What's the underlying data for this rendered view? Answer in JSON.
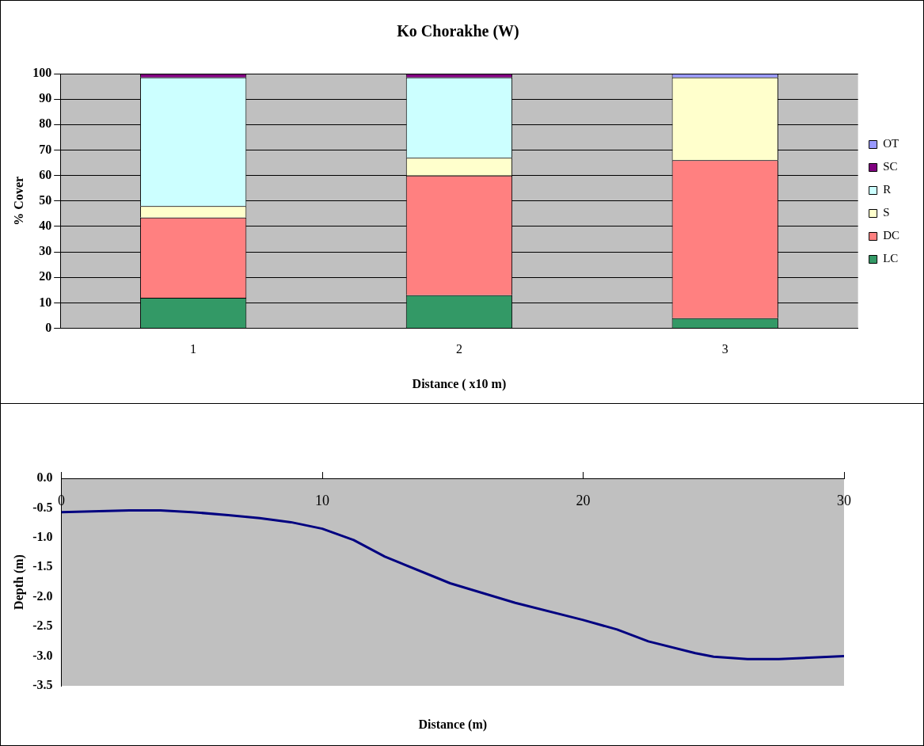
{
  "chart_data": [
    {
      "type": "bar",
      "title": "Ko Chorakhe (W)",
      "xlabel": "Distance ( x10 m)",
      "ylabel": "% Cover",
      "categories": [
        "1",
        "2",
        "3"
      ],
      "stacked": true,
      "series": [
        {
          "name": "LC",
          "color": "#339966",
          "values": [
            12,
            13,
            4
          ]
        },
        {
          "name": "DC",
          "color": "#ff8080",
          "values": [
            31.5,
            47,
            62
          ]
        },
        {
          "name": "S",
          "color": "#ffffcc",
          "values": [
            4.5,
            7,
            32.5
          ]
        },
        {
          "name": "R",
          "color": "#ccffff",
          "values": [
            50.5,
            31.5,
            0
          ]
        },
        {
          "name": "SC",
          "color": "#800080",
          "values": [
            1.5,
            1.5,
            0
          ]
        },
        {
          "name": "OT",
          "color": "#9999ff",
          "values": [
            0,
            0,
            1.5
          ]
        }
      ],
      "ylim": [
        0,
        100
      ],
      "yticks": [
        0,
        10,
        20,
        30,
        40,
        50,
        60,
        70,
        80,
        90,
        100
      ],
      "grid": "y",
      "legend": "right"
    },
    {
      "type": "line",
      "xlabel": "Distance (m)",
      "ylabel": "Depth (m)",
      "x": [
        0,
        2.6,
        3.8,
        5.0,
        6.4,
        7.6,
        8.8,
        10,
        11.2,
        12.4,
        14.4,
        14.9,
        17.4,
        20,
        21.3,
        22.5,
        24.3,
        25.0,
        26.3,
        27.5,
        30
      ],
      "series": [
        {
          "color": "#000080",
          "values": [
            -0.57,
            -0.54,
            -0.54,
            -0.57,
            -0.62,
            -0.67,
            -0.74,
            -0.85,
            -1.04,
            -1.32,
            -1.68,
            -1.77,
            -2.1,
            -2.39,
            -2.55,
            -2.75,
            -2.95,
            -3.01,
            -3.05,
            -3.05,
            -3.0
          ]
        }
      ],
      "xlim": [
        0,
        30
      ],
      "xticks": [
        0,
        10,
        20,
        30
      ],
      "ylim": [
        -3.5,
        0
      ],
      "yticks": [
        {
          "value": 0,
          "label": "0.0"
        },
        {
          "value": -0.5,
          "label": "-0.5"
        },
        {
          "value": -1,
          "label": "-1.0"
        },
        {
          "value": -1.5,
          "label": "-1.5"
        },
        {
          "value": -2,
          "label": "-2.0"
        },
        {
          "value": -2.5,
          "label": "-2.5"
        },
        {
          "value": -3,
          "label": "-3.0"
        },
        {
          "value": -3.5,
          "label": "-3.5"
        }
      ],
      "grid": false,
      "legend": false,
      "marker": "none",
      "line_style": "solid"
    }
  ]
}
